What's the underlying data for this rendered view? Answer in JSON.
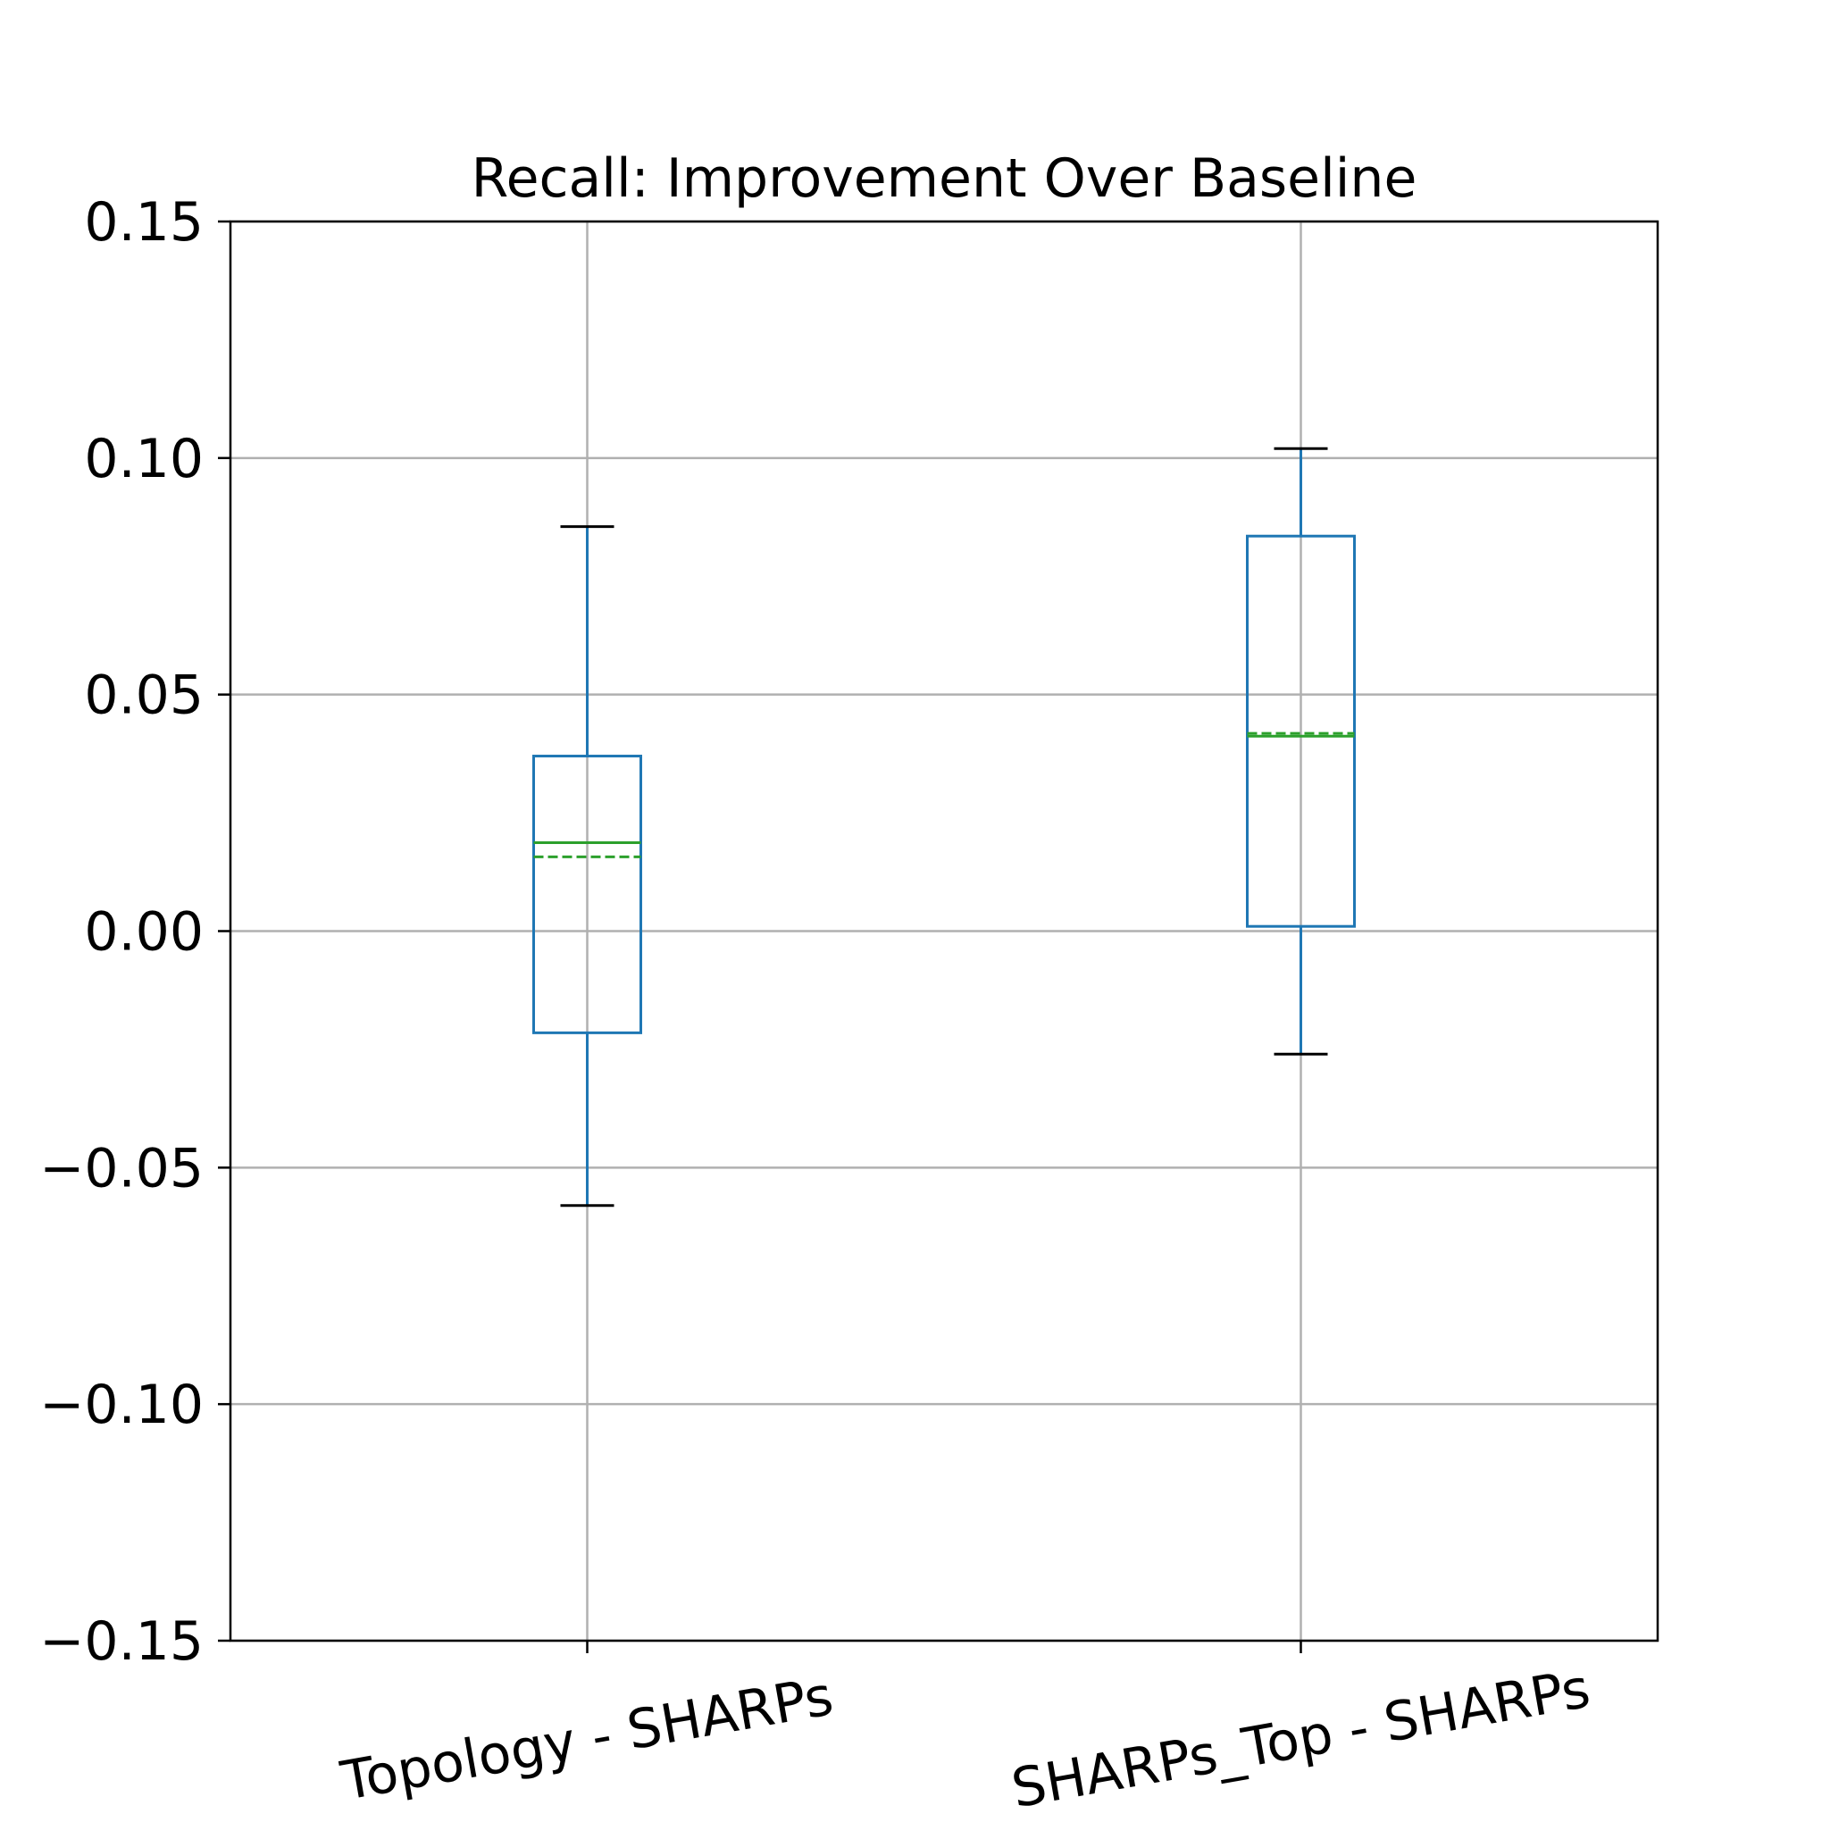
{
  "chart_data": {
    "type": "box",
    "title": "Recall: Improvement Over Baseline",
    "xlabel": "",
    "ylabel": "",
    "ylim": [
      -0.15,
      0.15
    ],
    "yticks": [
      -0.15,
      -0.1,
      -0.05,
      0.0,
      0.05,
      0.1,
      0.15
    ],
    "ytick_labels": [
      "−0.15",
      "−0.10",
      "−0.05",
      "0.00",
      "0.05",
      "0.10",
      "0.15"
    ],
    "grid": true,
    "categories": [
      "Topology - SHARPs",
      "SHARPs_Top - SHARPs"
    ],
    "boxes": [
      {
        "whisker_low": -0.058,
        "q1": -0.0215,
        "median": 0.0187,
        "mean": 0.0157,
        "q3": 0.037,
        "whisker_high": 0.0855
      },
      {
        "whisker_low": -0.026,
        "q1": 0.001,
        "median": 0.0412,
        "mean": 0.0418,
        "q3": 0.0835,
        "whisker_high": 0.102
      }
    ],
    "colors": {
      "box": "#1f77b4",
      "median": "#2ca02c",
      "mean": "#2ca02c",
      "caps": "#000000",
      "grid": "#b0b0b0",
      "axes": "#000000"
    }
  }
}
